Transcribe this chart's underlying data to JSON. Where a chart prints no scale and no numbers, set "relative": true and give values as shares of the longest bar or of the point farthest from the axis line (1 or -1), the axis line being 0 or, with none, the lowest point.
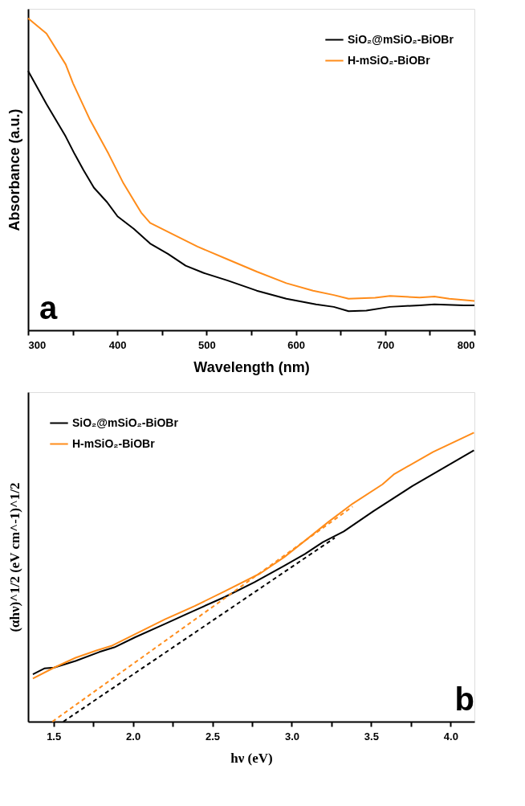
{
  "chart_data": [
    {
      "type": "line",
      "relative": true,
      "xlabel": "Wavelength (nm)",
      "ylabel": "Absorbance (a.u.)",
      "annotations": [
        "a"
      ],
      "legend": "top right",
      "line_style": "solid",
      "marker": "none",
      "xlim": [
        300,
        800
      ],
      "xticks": [
        300,
        {
          "value": 350,
          "label": null
        },
        400,
        {
          "value": 450,
          "label": null
        },
        500,
        {
          "value": 550,
          "label": null
        },
        600,
        {
          "value": 650,
          "label": null
        },
        700,
        {
          "value": 750,
          "label": null
        },
        800
      ],
      "series": [
        {
          "name": "SiO₂@mSiO₂-BiOBr",
          "color": "#000000",
          "x": [
            300,
            320.6,
            342.1,
            352.1,
            362.1,
            373.7,
            388.6,
            400.2,
            418.4,
            436.7,
            456.6,
            476.5,
            496.4,
            523.0,
            556.1,
            589.3,
            622.5,
            642.4,
            659.0,
            678.9,
            705.4,
            738.6,
            755.2,
            788.4,
            800
          ],
          "values": [
            0.831,
            0.725,
            0.621,
            0.565,
            0.513,
            0.457,
            0.41,
            0.365,
            0.325,
            0.278,
            0.245,
            0.207,
            0.184,
            0.16,
            0.127,
            0.101,
            0.083,
            0.075,
            0.061,
            0.063,
            0.075,
            0.08,
            0.083,
            0.08,
            0.08
          ]
        },
        {
          "name": "H-mSiO₂-BiOBr",
          "color": "#ff8c1a",
          "x": [
            300,
            320.6,
            342.1,
            350.4,
            368.7,
            390.2,
            406.8,
            426.7,
            436.7,
            463.2,
            489.8,
            523.0,
            556.1,
            589.3,
            619.2,
            642.4,
            659.0,
            688.8,
            705.4,
            738.6,
            755.2,
            771.8,
            800
          ],
          "values": [
            1.0,
            0.951,
            0.852,
            0.791,
            0.678,
            0.565,
            0.471,
            0.377,
            0.344,
            0.306,
            0.268,
            0.228,
            0.188,
            0.151,
            0.127,
            0.113,
            0.101,
            0.104,
            0.11,
            0.105,
            0.108,
            0.101,
            0.094
          ]
        }
      ]
    },
    {
      "type": "line",
      "relative": true,
      "xlabel": "hν (eV)",
      "ylabel": "(αhν)^1/2 (eV cm^-1)^1/2",
      "annotations": [
        "b"
      ],
      "legend": "top left",
      "line_style": "solid",
      "marker": "none",
      "xlim": [
        1.34,
        4.15
      ],
      "xticks": [
        {
          "value": 1.5,
          "label": "1.5"
        },
        {
          "value": 1.75,
          "label": null
        },
        {
          "value": 2.0,
          "label": "2.0"
        },
        {
          "value": 2.25,
          "label": null
        },
        {
          "value": 2.5,
          "label": "2.5"
        },
        {
          "value": 2.75,
          "label": null
        },
        {
          "value": 3.0,
          "label": "3.0"
        },
        {
          "value": 3.25,
          "label": null
        },
        {
          "value": 3.5,
          "label": "3.5"
        },
        {
          "value": 3.75,
          "label": null
        },
        {
          "value": 4.0,
          "label": "4.0"
        }
      ],
      "series": [
        {
          "name": "SiO₂@mSiO₂-BiOBr",
          "color": "#000000",
          "x": [
            1.37,
            1.442,
            1.504,
            1.639,
            1.789,
            1.883,
            2.014,
            2.202,
            2.389,
            2.577,
            2.764,
            2.952,
            3.083,
            3.196,
            3.327,
            3.514,
            3.759,
            4.147
          ],
          "values": [
            0.164,
            0.184,
            0.187,
            0.21,
            0.241,
            0.257,
            0.292,
            0.338,
            0.385,
            0.431,
            0.482,
            0.539,
            0.58,
            0.621,
            0.658,
            0.728,
            0.815,
            0.939
          ]
        },
        {
          "name": "H-mSiO₂-BiOBr",
          "color": "#ff8c1a",
          "x": [
            1.37,
            1.504,
            1.639,
            1.77,
            1.864,
            2.014,
            2.202,
            2.389,
            2.577,
            2.802,
            2.952,
            3.083,
            3.233,
            3.383,
            3.571,
            3.646,
            3.89,
            4.147
          ],
          "values": [
            0.149,
            0.187,
            0.221,
            0.246,
            0.262,
            0.303,
            0.354,
            0.4,
            0.451,
            0.513,
            0.569,
            0.626,
            0.692,
            0.754,
            0.821,
            0.857,
            0.933,
            1.0
          ]
        },
        {
          "type": "line",
          "line_style": "dashed",
          "color": "#000000",
          "x": [
            1.562,
            3.271
          ],
          "values": [
            0,
            0.636
          ]
        },
        {
          "type": "line",
          "line_style": "dashed",
          "color": "#ff8c1a",
          "x": [
            1.493,
            3.383
          ],
          "values": [
            0,
            0.744
          ]
        }
      ]
    }
  ]
}
